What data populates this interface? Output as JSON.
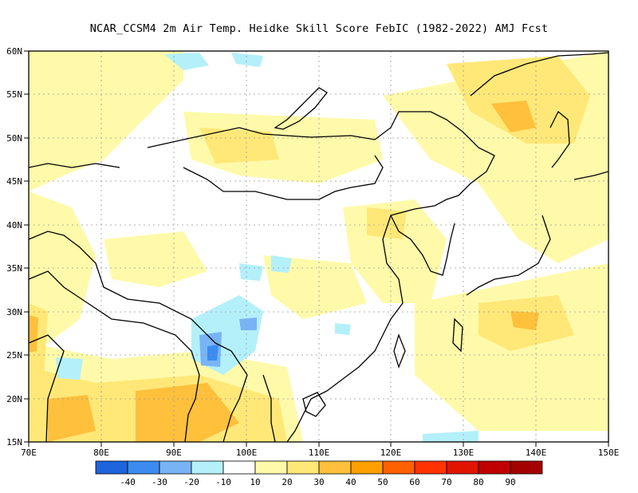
{
  "title": "NCAR_CCSM4  2m Air Temp. Heidke Skill Score FebIC (1982-2022) AMJ Fcst",
  "map": {
    "lon_range": [
      70,
      150
    ],
    "lat_range": [
      15,
      60
    ],
    "x_ticks": [
      "70E",
      "80E",
      "90E",
      "100E",
      "110E",
      "120E",
      "130E",
      "140E",
      "150E"
    ],
    "y_ticks": [
      "15N",
      "20N",
      "25N",
      "30N",
      "35N",
      "40N",
      "45N",
      "50N",
      "55N",
      "60N"
    ],
    "gridlines": true
  },
  "colorbar": {
    "colors": [
      "#1e64dc",
      "#3c8cf0",
      "#78b4f5",
      "#b4f0fa",
      "#ffffff",
      "#fffaaa",
      "#ffe878",
      "#ffc03c",
      "#ffa000",
      "#ff6000",
      "#ff3200",
      "#e11400",
      "#c00000",
      "#a50000"
    ],
    "labels": [
      "-40",
      "-30",
      "-20",
      "-10",
      "10",
      "20",
      "30",
      "40",
      "50",
      "60",
      "70",
      "80",
      "90"
    ]
  }
}
